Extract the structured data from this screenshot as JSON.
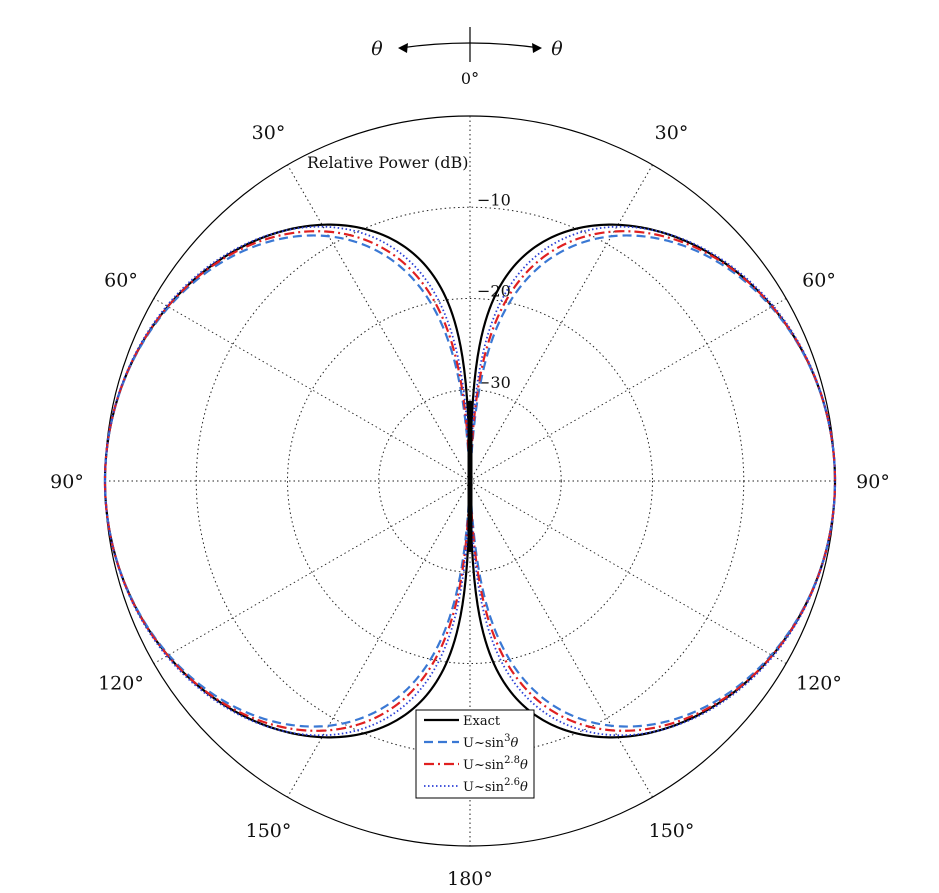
{
  "chart_data": {
    "type": "polar",
    "title": "",
    "radial_axis_label": "Relative Power (dB)",
    "radial_range_db": [
      -40,
      0
    ],
    "radial_ticks": [
      -10,
      -20,
      -30
    ],
    "radial_tick_labels": [
      "−10",
      "−20",
      "−30"
    ],
    "angular_ticks_deg": [
      0,
      30,
      60,
      90,
      120,
      150,
      180
    ],
    "angular_labels": {
      "top": "0°",
      "bottom": "180°",
      "left": [
        "30°",
        "60°",
        "90°",
        "120°",
        "150°"
      ],
      "right": [
        "30°",
        "60°",
        "90°",
        "120°",
        "150°"
      ]
    },
    "theta_indicator": {
      "left": "θ",
      "right": "θ",
      "origin": "0°"
    },
    "grid": true,
    "legend_position": "bottom-center",
    "series": [
      {
        "name": "Exact",
        "exponent": null,
        "color": "#000000",
        "style": "solid"
      },
      {
        "name": "U~sin^3θ",
        "exponent": 3,
        "color": "#3a78d4",
        "style": "dashed"
      },
      {
        "name": "U~sin^2.8θ",
        "exponent": 2.8,
        "color": "#e02020",
        "style": "dashdot"
      },
      {
        "name": "U~sin^2.6θ",
        "exponent": 2.6,
        "color": "#2b3fd6",
        "style": "dotted"
      }
    ],
    "legend": [
      {
        "prefix": "U~sin",
        "sup": "",
        "suffix": "Exact"
      },
      {
        "prefix": "U~sin",
        "sup": "3",
        "suffix": "θ"
      },
      {
        "prefix": "U~sin",
        "sup": "2.8",
        "suffix": "θ"
      },
      {
        "prefix": "U~sin",
        "sup": "2.6",
        "suffix": "θ"
      }
    ]
  }
}
